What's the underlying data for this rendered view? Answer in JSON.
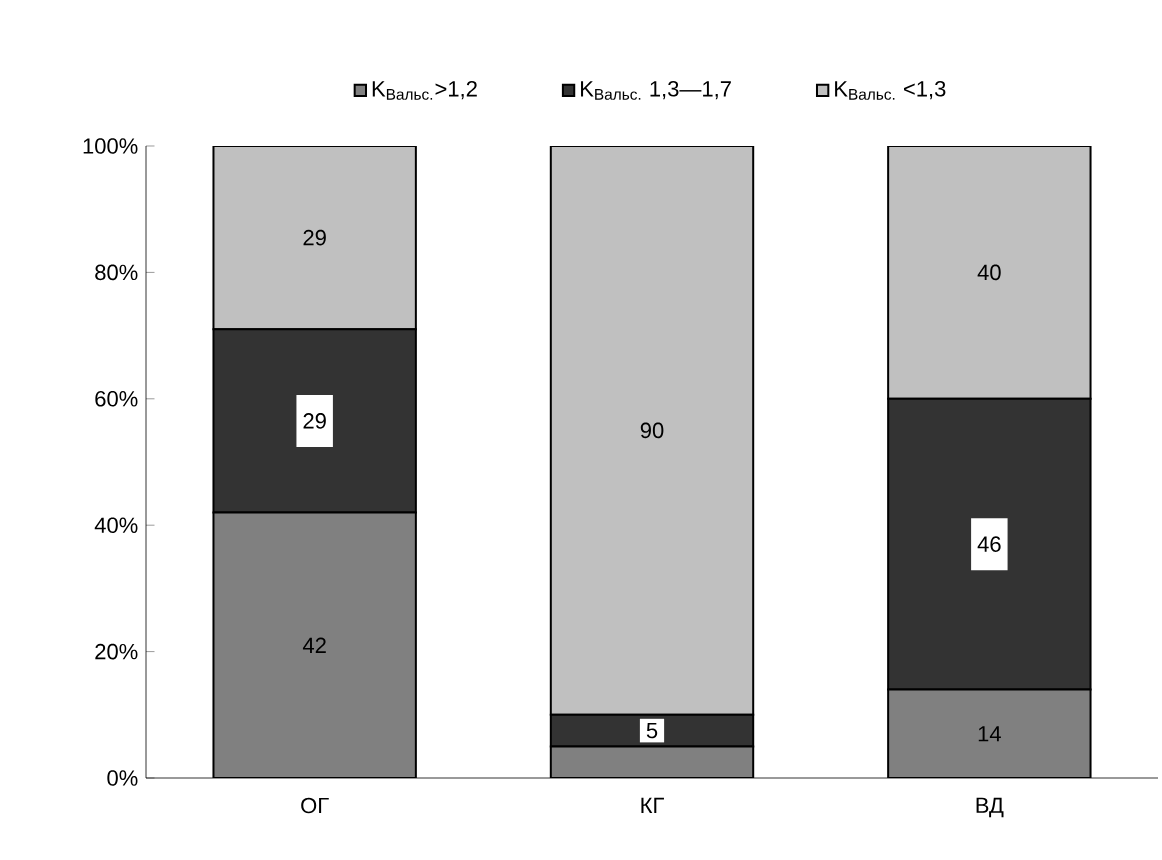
{
  "chart_data": {
    "type": "bar",
    "stacked": true,
    "categories": [
      "ОГ",
      "КГ",
      "ВД"
    ],
    "series": [
      {
        "name": "K$_{Вальс.}$>1,2",
        "color": "#808080",
        "values": [
          42,
          5,
          14
        ],
        "value_labels": [
          "42",
          null,
          "14"
        ]
      },
      {
        "name": "K$_{Вальс.}$ 1,3—1,7",
        "color": "#333333",
        "values": [
          29,
          5,
          46
        ],
        "value_labels": [
          "29",
          "5",
          "46"
        ]
      },
      {
        "name": "K$_{Вальс.}$ <1,3",
        "color": "#c0c0c0",
        "values": [
          29,
          90,
          40
        ],
        "value_labels": [
          "29",
          "90",
          "40"
        ]
      }
    ],
    "ylim": [
      0,
      100
    ],
    "yticks": [
      {
        "value": 0,
        "label": "0%"
      },
      {
        "value": 20,
        "label": "20%"
      },
      {
        "value": 40,
        "label": "40%"
      },
      {
        "value": 60,
        "label": "60%"
      },
      {
        "value": 80,
        "label": "80%"
      },
      {
        "value": 100,
        "label": "100%"
      }
    ],
    "grid": false,
    "legend": "top"
  }
}
